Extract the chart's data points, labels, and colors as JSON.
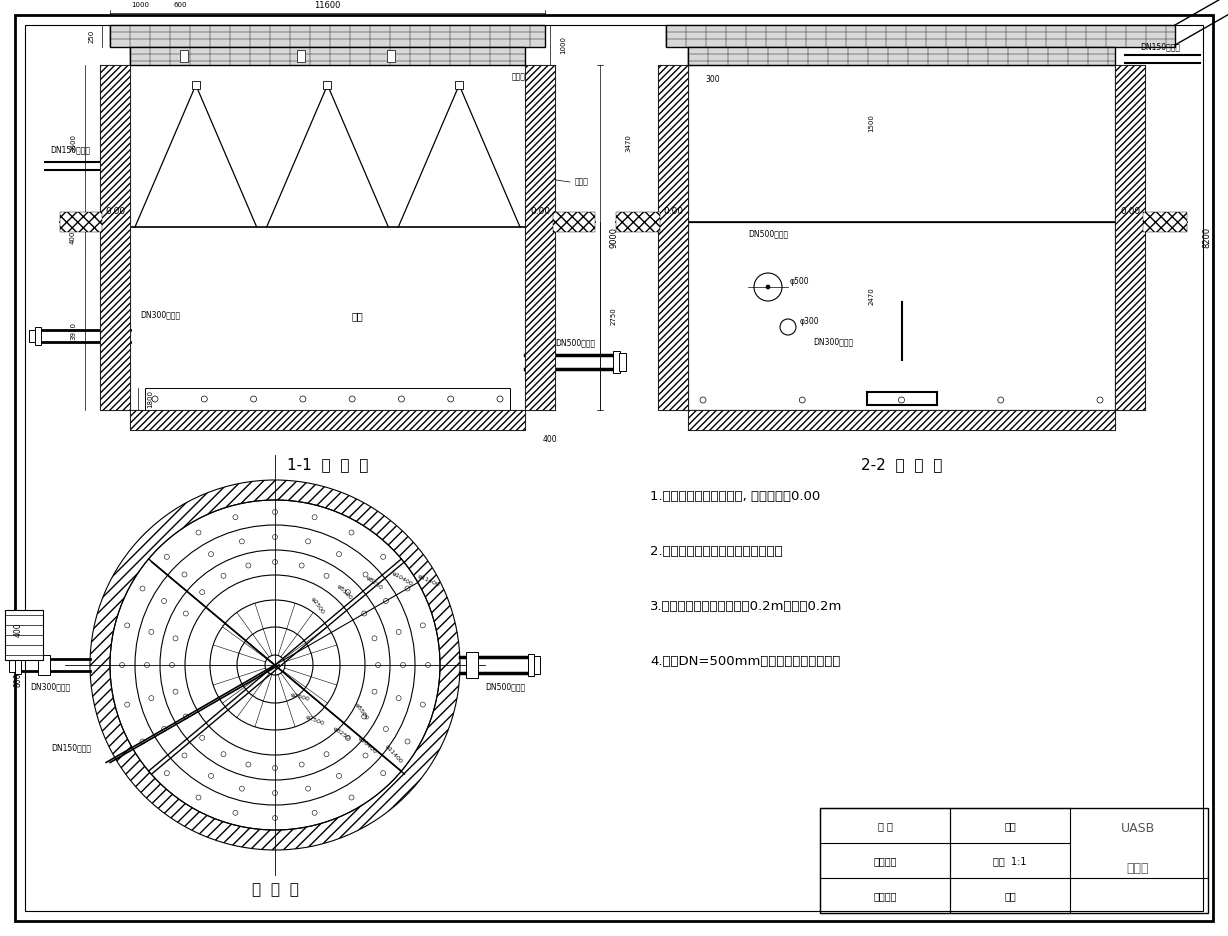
{
  "bg_color": "#ffffff",
  "notes": [
    "1.图尺寸均以毫米为单位, 室外标高为0.00",
    "2.图中结构组成均为钢筋混凝土结构",
    "3.采用锯齿形出水槽，槽宽0.2m，槽高0.2m",
    "4.采用DN=500mm排泥管，两天排泥一次"
  ]
}
